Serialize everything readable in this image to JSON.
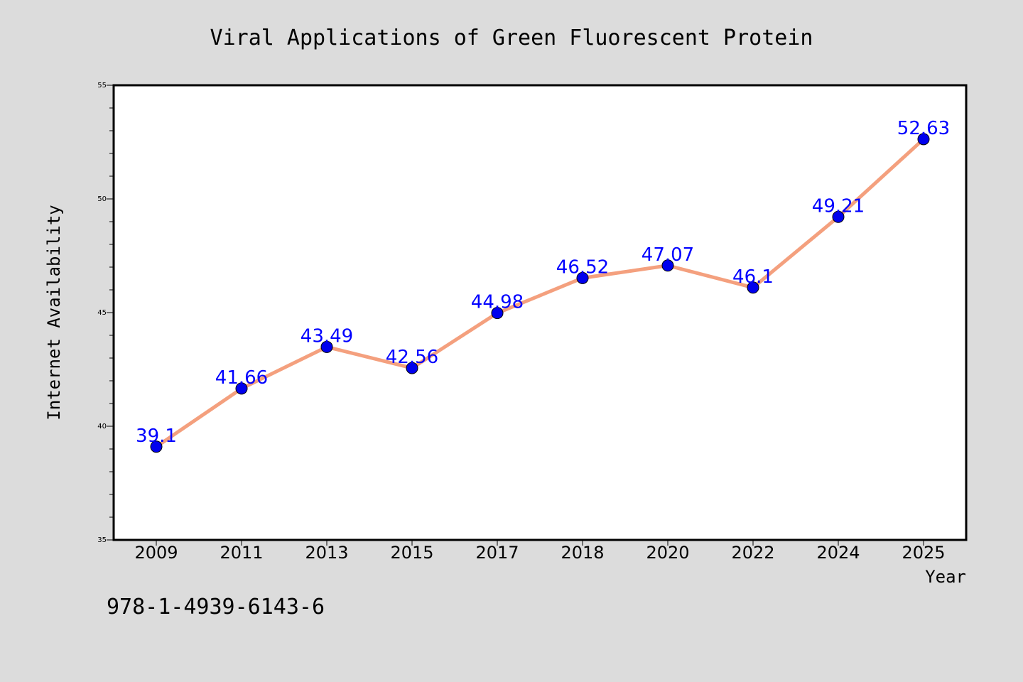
{
  "chart_data": {
    "type": "line",
    "title": "Viral Applications of Green Fluorescent Protein",
    "xlabel": "Year",
    "ylabel": "Internet Availability",
    "categories": [
      "2009",
      "2011",
      "2013",
      "2015",
      "2017",
      "2018",
      "2020",
      "2022",
      "2024",
      "2025"
    ],
    "series": [
      {
        "values": [
          39.1,
          41.66,
          43.49,
          42.56,
          44.98,
          46.52,
          47.07,
          46.1,
          49.21,
          52.63
        ],
        "labels": [
          "39.1",
          "41.66",
          "43.49",
          "42.56",
          "44.98",
          "46.52",
          "47.07",
          "46.1",
          "49.21",
          "52.63"
        ],
        "line_color": "#f4a07e",
        "marker_color": "#0000ee"
      }
    ],
    "ylim": [
      35,
      55
    ],
    "yticks": [
      "35",
      "40",
      "45",
      "50",
      "55"
    ],
    "grid": false,
    "legend": "none"
  },
  "footer_text": "978-1-4939-6143-6",
  "colors": {
    "background": "#dcdcdc",
    "plot_background": "#ffffff",
    "label_color": "#0000ff"
  }
}
